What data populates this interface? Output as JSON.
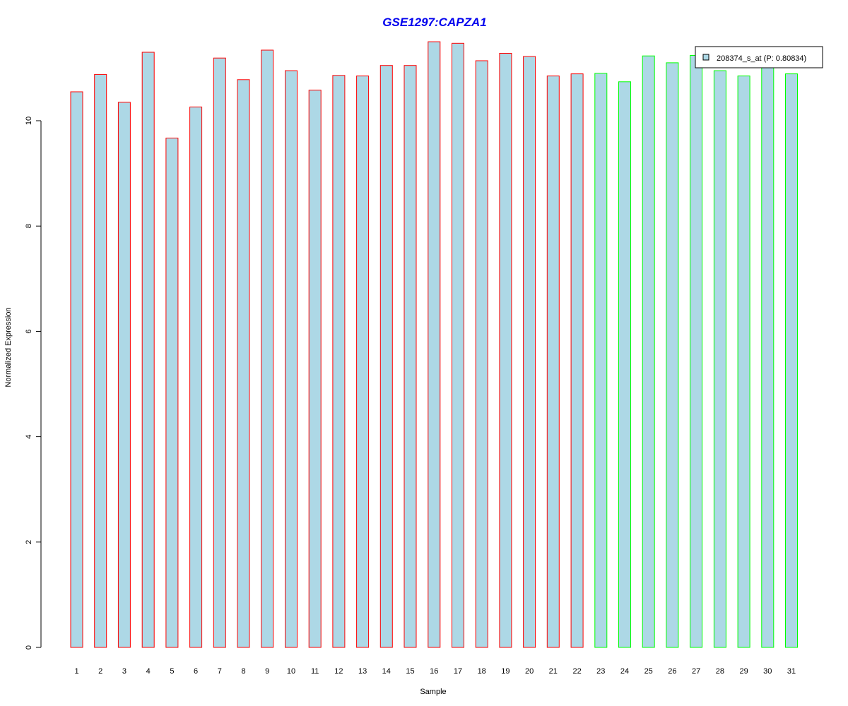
{
  "chart_data": {
    "type": "bar",
    "title": "GSE1297:CAPZA1",
    "xlabel": "Sample",
    "ylabel": "Normalized Expression",
    "categories": [
      "1",
      "2",
      "3",
      "4",
      "5",
      "6",
      "7",
      "8",
      "9",
      "10",
      "11",
      "12",
      "13",
      "14",
      "15",
      "16",
      "17",
      "18",
      "19",
      "20",
      "21",
      "22",
      "23",
      "24",
      "25",
      "26",
      "27",
      "28",
      "29",
      "30",
      "31"
    ],
    "series": [
      {
        "name": "208374_s_at (P: 0.80834)",
        "values": [
          10.55,
          10.88,
          10.35,
          11.3,
          9.67,
          10.26,
          11.19,
          10.78,
          11.34,
          10.95,
          10.58,
          10.86,
          10.85,
          11.05,
          11.05,
          11.5,
          11.47,
          11.14,
          11.28,
          11.22,
          10.85,
          10.89,
          10.9,
          10.74,
          11.23,
          11.1,
          11.24,
          10.95,
          10.85,
          11.02,
          10.89
        ]
      }
    ],
    "group_border_colors": [
      "#ff0000",
      "#ff0000",
      "#ff0000",
      "#ff0000",
      "#ff0000",
      "#ff0000",
      "#ff0000",
      "#ff0000",
      "#ff0000",
      "#ff0000",
      "#ff0000",
      "#ff0000",
      "#ff0000",
      "#ff0000",
      "#ff0000",
      "#ff0000",
      "#ff0000",
      "#ff0000",
      "#ff0000",
      "#ff0000",
      "#ff0000",
      "#ff0000",
      "#00ff00",
      "#00ff00",
      "#00ff00",
      "#00ff00",
      "#00ff00",
      "#00ff00",
      "#00ff00",
      "#00ff00",
      "#00ff00"
    ],
    "bar_fill": "#add8e6",
    "title_color": "#0000ee",
    "yticks": [
      "0",
      "2",
      "4",
      "6",
      "8",
      "10"
    ],
    "ylim": [
      0,
      11.5
    ],
    "grid": false,
    "legend_position": "top-right"
  }
}
